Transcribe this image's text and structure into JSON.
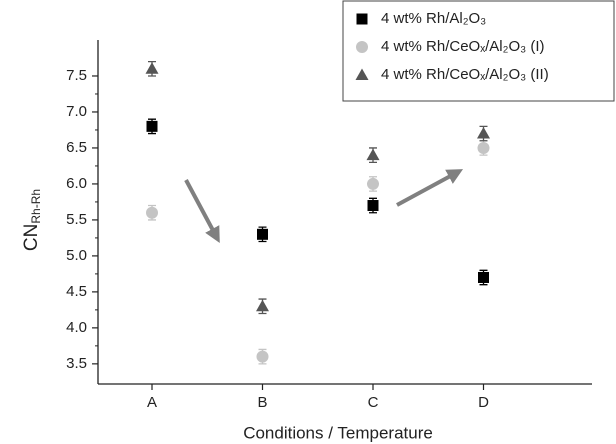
{
  "chart_data": {
    "type": "scatter",
    "xlabel": "Conditions / Temperature",
    "ylabel": {
      "text": "CN",
      "subscript": "Rh-Rh"
    },
    "categories": [
      "A",
      "B",
      "C",
      "D"
    ],
    "series": [
      {
        "name": "4 wt% Rh/Al₂O₃",
        "color": "#000000",
        "marker": "square",
        "values": [
          6.8,
          5.3,
          5.7,
          4.7
        ],
        "errors": [
          0.1,
          0.1,
          0.1,
          0.1
        ]
      },
      {
        "name": "4 wt% Rh/CeOₓ/Al₂O₃ (I)",
        "color": "#c4c4c4",
        "marker": "circle",
        "values": [
          5.6,
          3.6,
          6.0,
          6.5
        ],
        "errors": [
          0.1,
          0.1,
          0.1,
          0.1
        ]
      },
      {
        "name": "4 wt% Rh/CeOₓ/Al₂O₃ (II)",
        "color": "#555555",
        "marker": "triangle",
        "values": [
          7.6,
          4.3,
          6.4,
          6.7
        ],
        "errors": [
          0.1,
          0.1,
          0.1,
          0.1
        ]
      }
    ],
    "ylim": [
      3.22,
      8.0
    ],
    "yticks": [
      {
        "value": 3.5,
        "label": "3.5"
      },
      {
        "value": 4.0,
        "label": "4.0"
      },
      {
        "value": 4.5,
        "label": "4.5"
      },
      {
        "value": 5.0,
        "label": "5.0"
      },
      {
        "value": 5.5,
        "label": "5.5"
      },
      {
        "value": 6.0,
        "label": "6.0"
      },
      {
        "value": 6.5,
        "label": "6.5"
      },
      {
        "value": 7.0,
        "label": "7.0"
      },
      {
        "value": 7.5,
        "label": "7.5"
      }
    ],
    "legend": "upper right"
  }
}
